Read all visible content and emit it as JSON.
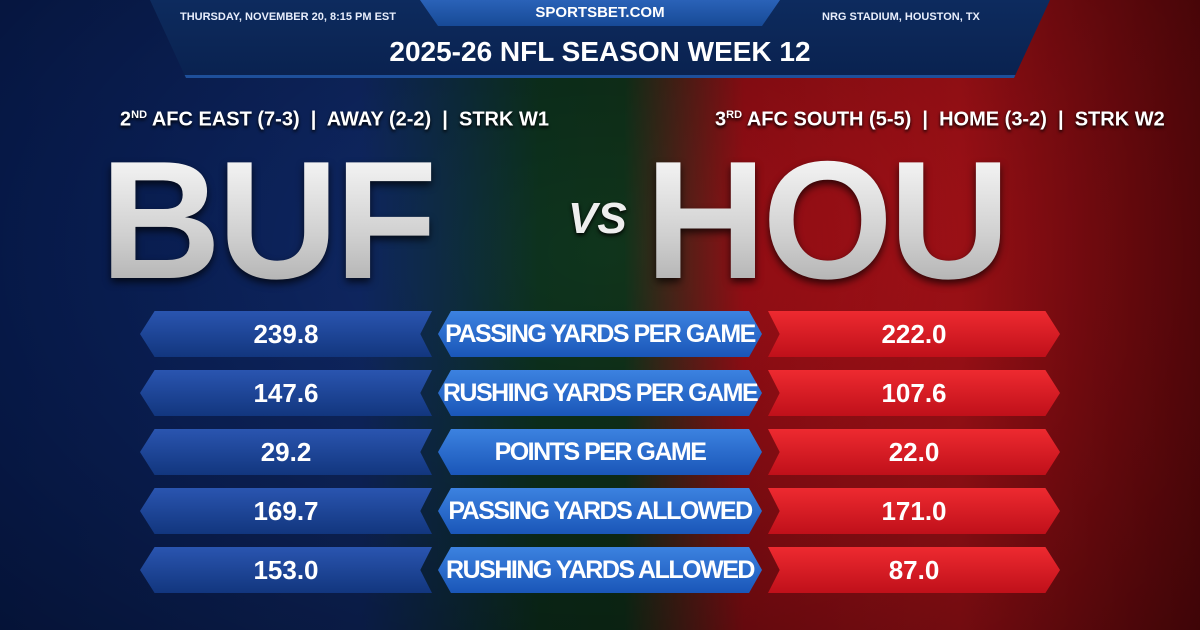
{
  "header": {
    "site": "SPORTSBET.COM",
    "date": "THURSDAY, NOVEMBER 20, 8:15 PM EST",
    "venue": "NRG STADIUM, HOUSTON, TX",
    "title": "2025-26 NFL SEASON WEEK 12"
  },
  "away": {
    "abbr": "BUF",
    "rank": "2",
    "rank_suffix": "ND",
    "record": " AFC EAST (7-3)  |  AWAY (2-2)  |  STRK W1",
    "color": "#1a3f96"
  },
  "home": {
    "abbr": "HOU",
    "rank": "3",
    "rank_suffix": "RD",
    "record": " AFC SOUTH (5-5)  |  HOME (3-2)  |  STRK W2",
    "color": "#d8161e"
  },
  "vs": "VS",
  "stats": [
    {
      "label": "PASSING YARDS PER GAME",
      "away": "239.8",
      "home": "222.0"
    },
    {
      "label": "RUSHING YARDS PER GAME",
      "away": "147.6",
      "home": "107.6"
    },
    {
      "label": "POINTS PER GAME",
      "away": "29.2",
      "home": "22.0"
    },
    {
      "label": "PASSING YARDS ALLOWED",
      "away": "169.7",
      "home": "171.0"
    },
    {
      "label": "RUSHING YARDS ALLOWED",
      "away": "153.0",
      "home": "87.0"
    }
  ]
}
